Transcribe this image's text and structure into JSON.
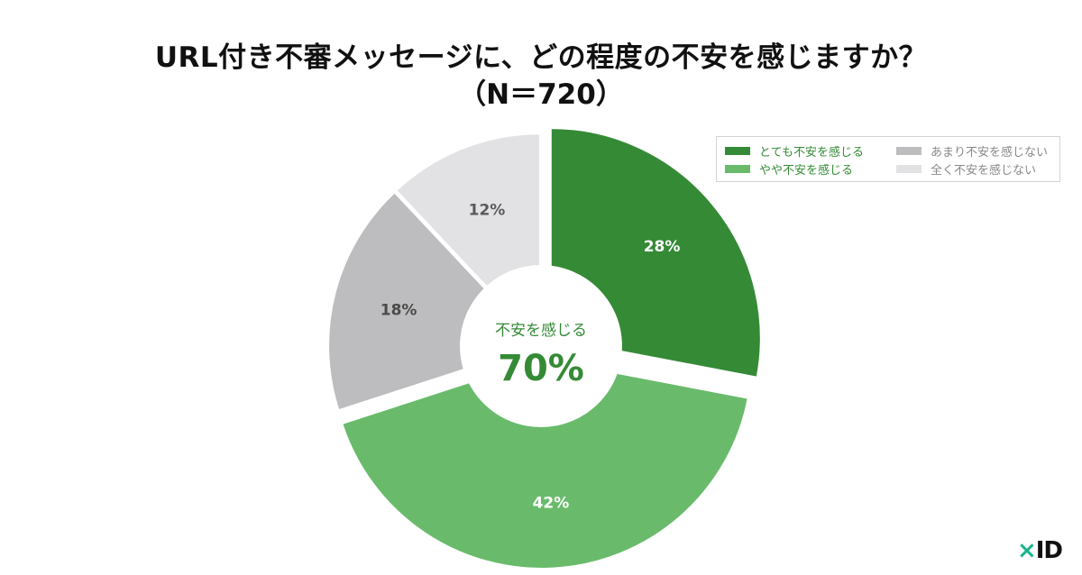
{
  "header": {
    "title": "URL付き不審メッセージに、どの程度の不安を感じますか？",
    "subtitle": "（N＝720）"
  },
  "chart_data": {
    "type": "pie",
    "title": "URL付き不審メッセージに、どの程度の不安を感じますか？",
    "subtitle": "（N＝720）",
    "donut": true,
    "start": "12 o'clock, clockwise",
    "slices": [
      {
        "name": "とても不安を感じる",
        "value": 28,
        "label": "28%",
        "color": "#358a36",
        "label_color": "#ffffff",
        "exploded": true
      },
      {
        "name": "やや不安を感じる",
        "value": 42,
        "label": "42%",
        "color": "#69bb6b",
        "label_color": "#ffffff",
        "exploded": true
      },
      {
        "name": "あまり不安を感じない",
        "value": 18,
        "label": "18%",
        "color": "#bdbdbf",
        "label_color": "#4a4a4a",
        "exploded": false
      },
      {
        "name": "全く不安を感じない",
        "value": 12,
        "label": "12%",
        "color": "#e2e2e4",
        "label_color": "#5a5a5a",
        "exploded": false
      }
    ],
    "center": {
      "caption": "不安を感じる",
      "value": "70%",
      "color": "#358a36"
    },
    "legend": {
      "placement": "top-right",
      "columns": 2,
      "items": [
        {
          "name": "とても不安を感じる",
          "color": "#358a36",
          "text_color": "#358a36"
        },
        {
          "name": "やや不安を感じる",
          "color": "#69bb6b",
          "text_color": "#358a36"
        },
        {
          "name": "あまり不安を感じない",
          "color": "#bdbdbf",
          "text_color": "#888888"
        },
        {
          "name": "全く不安を感じない",
          "color": "#e2e2e4",
          "text_color": "#888888"
        }
      ]
    }
  },
  "logo": {
    "x": "×",
    "id": "ID"
  }
}
